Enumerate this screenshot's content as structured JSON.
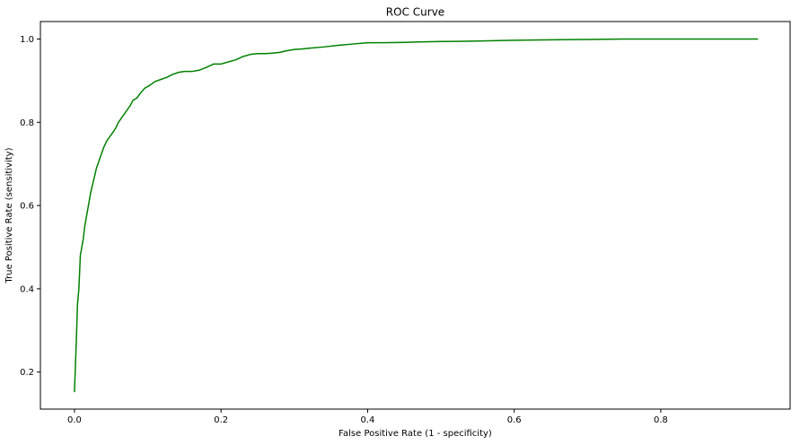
{
  "chart_data": {
    "type": "line",
    "title": "ROC Curve",
    "xlabel": "False Positive Rate (1 - specificity)",
    "ylabel": "True Positive Rate (sensitivity)",
    "xlim": [
      -0.0465,
      0.9765
    ],
    "ylim": [
      0.111,
      1.042
    ],
    "xticks": [
      {
        "value": 0.0,
        "label": "0.0"
      },
      {
        "value": 0.2,
        "label": "0.2"
      },
      {
        "value": 0.4,
        "label": "0.4"
      },
      {
        "value": 0.6,
        "label": "0.6"
      },
      {
        "value": 0.8,
        "label": "0.8"
      }
    ],
    "yticks": [
      {
        "value": 0.2,
        "label": "0.2"
      },
      {
        "value": 0.4,
        "label": "0.4"
      },
      {
        "value": 0.6,
        "label": "0.6"
      },
      {
        "value": 0.8,
        "label": "0.8"
      },
      {
        "value": 1.0,
        "label": "1.0"
      }
    ],
    "grid": false,
    "legend": null,
    "series": [
      {
        "color": "#008000",
        "x": [
          0.0,
          0.002,
          0.003,
          0.004,
          0.005,
          0.006,
          0.007,
          0.008,
          0.01,
          0.012,
          0.014,
          0.016,
          0.018,
          0.02,
          0.022,
          0.024,
          0.026,
          0.028,
          0.03,
          0.033,
          0.036,
          0.04,
          0.044,
          0.048,
          0.052,
          0.056,
          0.06,
          0.064,
          0.068,
          0.072,
          0.076,
          0.08,
          0.085,
          0.09,
          0.096,
          0.102,
          0.11,
          0.118,
          0.126,
          0.134,
          0.142,
          0.15,
          0.16,
          0.17,
          0.18,
          0.19,
          0.196,
          0.2,
          0.21,
          0.22,
          0.23,
          0.24,
          0.25,
          0.26,
          0.27,
          0.28,
          0.29,
          0.3,
          0.31,
          0.32,
          0.34,
          0.36,
          0.38,
          0.4,
          0.42,
          0.45,
          0.47,
          0.5,
          0.55,
          0.6,
          0.65,
          0.7,
          0.75,
          0.8,
          0.85,
          0.9,
          0.932
        ],
        "y": [
          0.153,
          0.25,
          0.3,
          0.36,
          0.38,
          0.4,
          0.44,
          0.48,
          0.5,
          0.52,
          0.55,
          0.57,
          0.59,
          0.61,
          0.63,
          0.645,
          0.66,
          0.675,
          0.69,
          0.705,
          0.72,
          0.74,
          0.755,
          0.765,
          0.775,
          0.785,
          0.8,
          0.81,
          0.82,
          0.83,
          0.84,
          0.853,
          0.858,
          0.87,
          0.882,
          0.888,
          0.898,
          0.903,
          0.908,
          0.915,
          0.92,
          0.922,
          0.922,
          0.925,
          0.932,
          0.94,
          0.94,
          0.94,
          0.945,
          0.95,
          0.958,
          0.963,
          0.965,
          0.965,
          0.966,
          0.968,
          0.972,
          0.975,
          0.976,
          0.978,
          0.981,
          0.985,
          0.988,
          0.991,
          0.991,
          0.992,
          0.993,
          0.994,
          0.995,
          0.997,
          0.998,
          0.999,
          1.0,
          1.0,
          1.0,
          1.0,
          1.0
        ]
      }
    ]
  }
}
